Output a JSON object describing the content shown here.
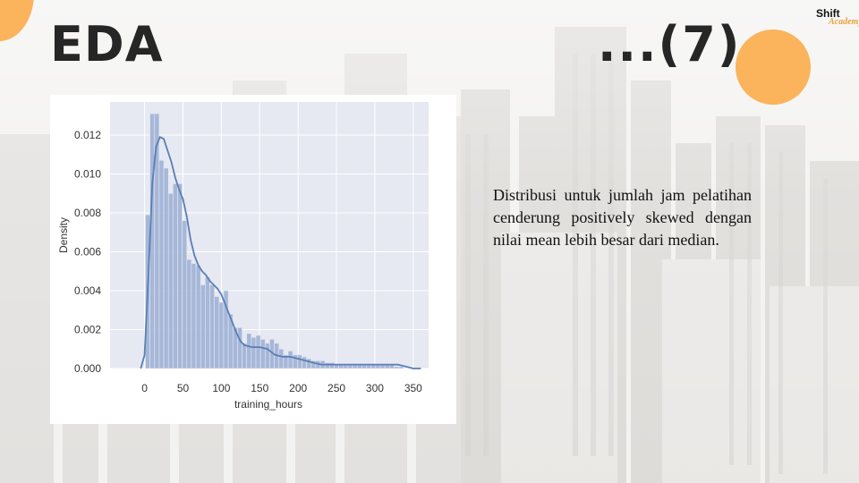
{
  "slide": {
    "title": "EDA",
    "number_label": "...(7)",
    "logo_main": "Shift",
    "logo_sub": "Academy",
    "description": "Distribusi untuk jumlah jam pelatihan cenderung positively skewed dengan nilai mean lebih besar  dari median."
  },
  "colors": {
    "accent_orange": "#fbb35c",
    "plot_background": "#e6e8f2",
    "bar_fill": "#9aaed4",
    "kde_line": "#5a7fb5"
  },
  "chart_data": {
    "type": "histogram_kde",
    "xlabel": "training_hours",
    "ylabel": "Density",
    "xlim": [
      -45,
      370
    ],
    "ylim": [
      0,
      0.0137
    ],
    "grid": true,
    "x_ticks": [
      0,
      50,
      100,
      150,
      200,
      250,
      300,
      350
    ],
    "y_ticks": [
      0.0,
      0.002,
      0.004,
      0.006,
      0.008,
      0.01,
      0.012
    ],
    "y_tick_labels": [
      "0.000",
      "0.002",
      "0.004",
      "0.006",
      "0.008",
      "0.010",
      "0.012"
    ],
    "bin_edges": [
      1,
      7,
      13,
      19,
      25,
      31,
      37,
      43,
      49,
      55,
      61,
      67,
      73,
      79,
      85,
      91,
      97,
      103,
      109,
      115,
      121,
      127,
      133,
      139,
      145,
      151,
      157,
      163,
      169,
      175,
      181,
      187,
      193,
      199,
      205,
      211,
      217,
      223,
      229,
      235,
      241,
      247,
      253,
      259,
      265,
      271,
      277,
      283,
      289,
      295,
      301,
      307,
      313,
      319,
      325,
      331,
      337
    ],
    "densities": [
      0.0079,
      0.0131,
      0.0131,
      0.0107,
      0.0103,
      0.009,
      0.0095,
      0.0095,
      0.0076,
      0.0056,
      0.0054,
      0.0053,
      0.0043,
      0.0047,
      0.0043,
      0.0037,
      0.0034,
      0.004,
      0.0028,
      0.0021,
      0.0021,
      0.0013,
      0.0018,
      0.0016,
      0.0017,
      0.0015,
      0.0013,
      0.0015,
      0.0013,
      0.001,
      0.0007,
      0.0009,
      0.0007,
      0.0007,
      0.0006,
      0.0005,
      0.0004,
      0.0004,
      0.0004,
      0.0003,
      0.0003,
      0.0002,
      0.0002,
      0.0002,
      0.0002,
      0.0002,
      0.0002,
      0.0002,
      0.0002,
      0.0002,
      0.0002,
      0.0002,
      0.0002,
      0.0002,
      0.0001,
      0.0001
    ],
    "kde_x": [
      -5,
      0,
      5,
      10,
      15,
      20,
      25,
      30,
      35,
      40,
      45,
      50,
      55,
      60,
      65,
      70,
      75,
      80,
      85,
      90,
      95,
      100,
      105,
      110,
      115,
      120,
      125,
      130,
      140,
      150,
      160,
      170,
      180,
      190,
      200,
      210,
      220,
      230,
      240,
      250,
      260,
      270,
      280,
      290,
      300,
      310,
      320,
      330,
      340,
      350,
      360
    ],
    "kde_y": [
      0.0,
      0.0007,
      0.0048,
      0.0095,
      0.0114,
      0.0119,
      0.0118,
      0.0112,
      0.0106,
      0.0098,
      0.0092,
      0.0087,
      0.0078,
      0.0066,
      0.0058,
      0.0053,
      0.005,
      0.0048,
      0.0045,
      0.0043,
      0.0041,
      0.0038,
      0.0033,
      0.0028,
      0.0023,
      0.0018,
      0.0014,
      0.0012,
      0.0011,
      0.0011,
      0.001,
      0.0007,
      0.0006,
      0.0006,
      0.0005,
      0.0004,
      0.0003,
      0.0002,
      0.0002,
      0.0002,
      0.0002,
      0.0002,
      0.0002,
      0.0002,
      0.0002,
      0.0002,
      0.0002,
      0.0002,
      0.0001,
      0.0,
      0.0
    ]
  }
}
